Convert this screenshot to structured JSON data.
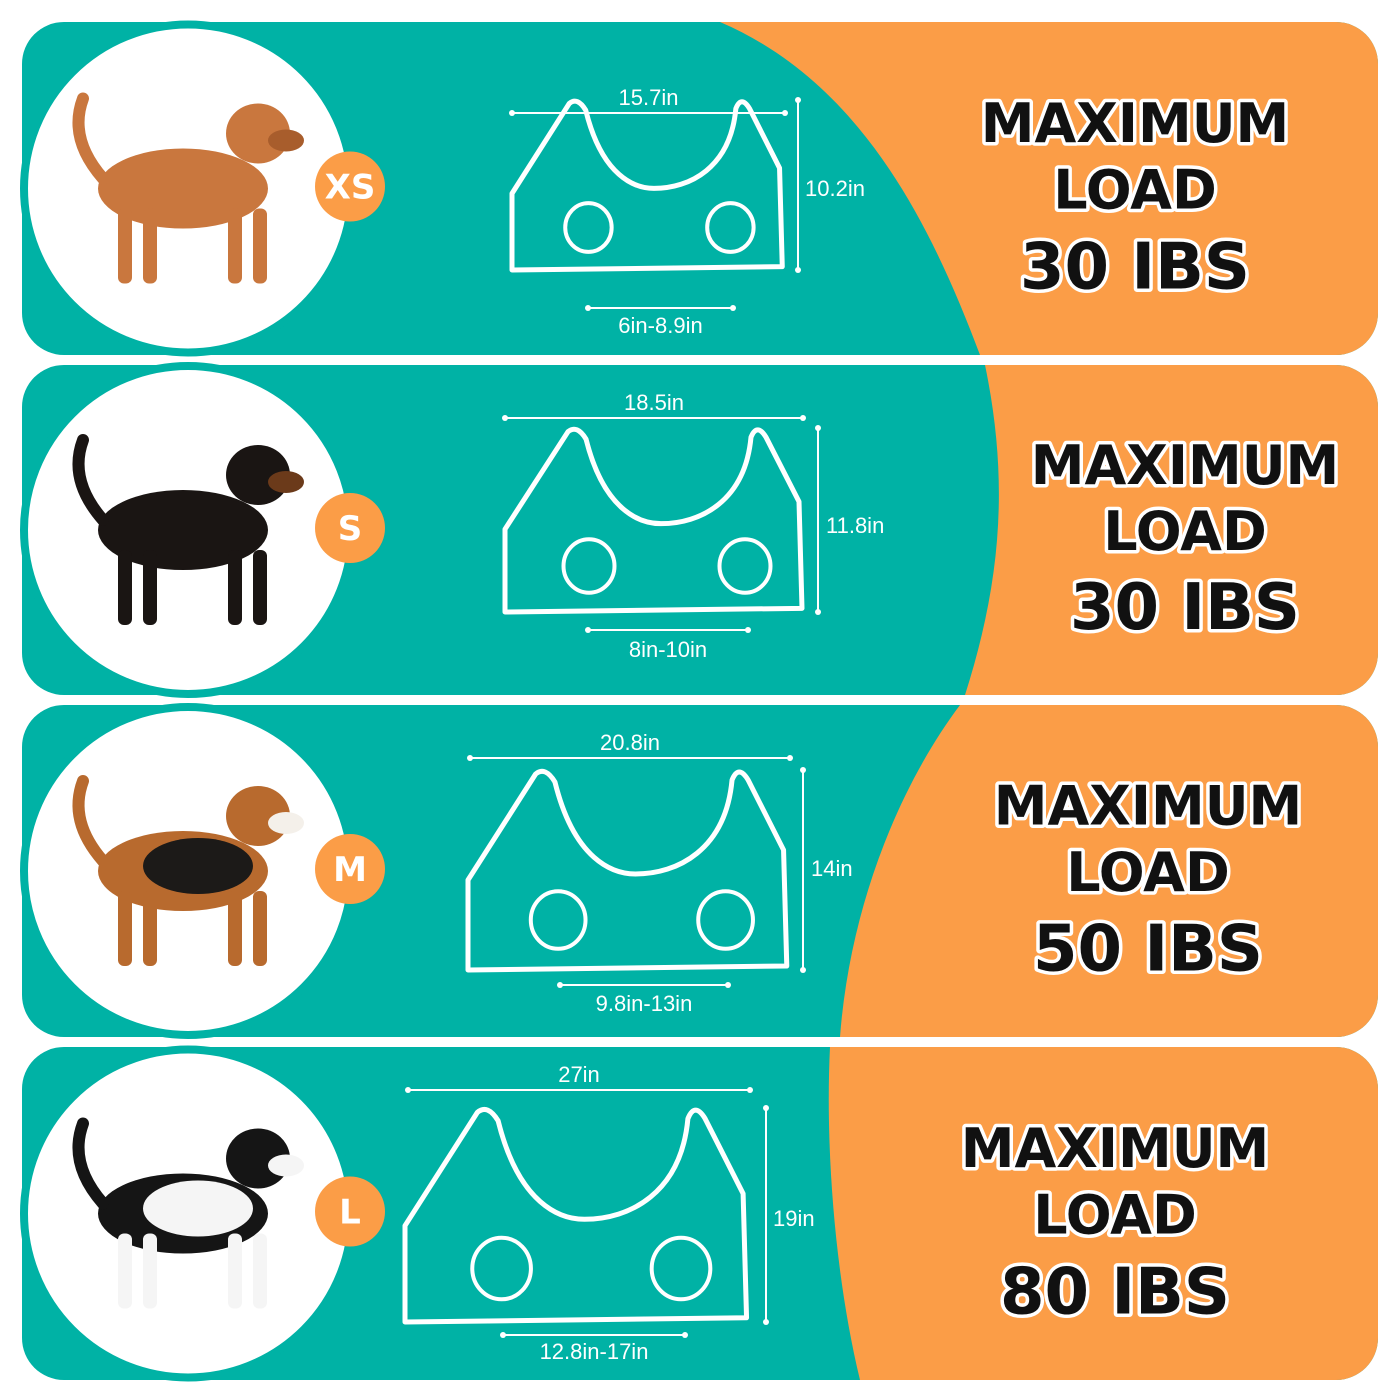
{
  "colors": {
    "teal": "#00b2a5",
    "orange": "#fb9d47",
    "white": "#ffffff",
    "text": "#111111"
  },
  "rows": [
    {
      "size": "XS",
      "dog": "poodle",
      "top_width": "15.7in",
      "height": "10.2in",
      "bottom_width": "6in-8.9in",
      "load_title_1": "MAXIMUM",
      "load_title_2": "LOAD",
      "load_value": "30 IBS"
    },
    {
      "size": "S",
      "dog": "dachshund",
      "top_width": "18.5in",
      "height": "11.8in",
      "bottom_width": "8in-10in",
      "load_title_1": "MAXIMUM",
      "load_title_2": "LOAD",
      "load_value": "30 IBS"
    },
    {
      "size": "M",
      "dog": "beagle",
      "top_width": "20.8in",
      "height": "14in",
      "bottom_width": "9.8in-13in",
      "load_title_1": "MAXIMUM",
      "load_title_2": "LOAD",
      "load_value": "50 IBS"
    },
    {
      "size": "L",
      "dog": "border-collie",
      "top_width": "27in",
      "height": "19in",
      "bottom_width": "12.8in-17in",
      "load_title_1": "MAXIMUM",
      "load_title_2": "LOAD",
      "load_value": "80 IBS"
    }
  ]
}
